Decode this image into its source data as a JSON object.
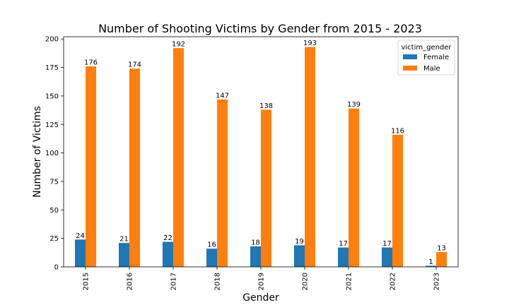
{
  "chart_data": {
    "type": "bar",
    "title": "Number of Shooting Victims by Gender from 2015 - 2023",
    "xlabel": "Gender",
    "ylabel": "Number of Victims",
    "categories": [
      "2015",
      "2016",
      "2017",
      "2018",
      "2019",
      "2020",
      "2021",
      "2022",
      "2023"
    ],
    "series": [
      {
        "name": "Female",
        "color": "#1f77b4",
        "values": [
          24,
          21,
          22,
          16,
          18,
          19,
          17,
          17,
          1
        ]
      },
      {
        "name": "Male",
        "color": "#ff7f0e",
        "values": [
          176,
          174,
          192,
          147,
          138,
          193,
          139,
          116,
          13
        ]
      }
    ],
    "ylim": [
      0,
      202
    ],
    "yticks": [
      "0",
      "25",
      "50",
      "75",
      "100",
      "125",
      "150",
      "175",
      "200"
    ],
    "legend": {
      "title": "victim_gender",
      "placement": "top-right"
    },
    "grid": false
  }
}
